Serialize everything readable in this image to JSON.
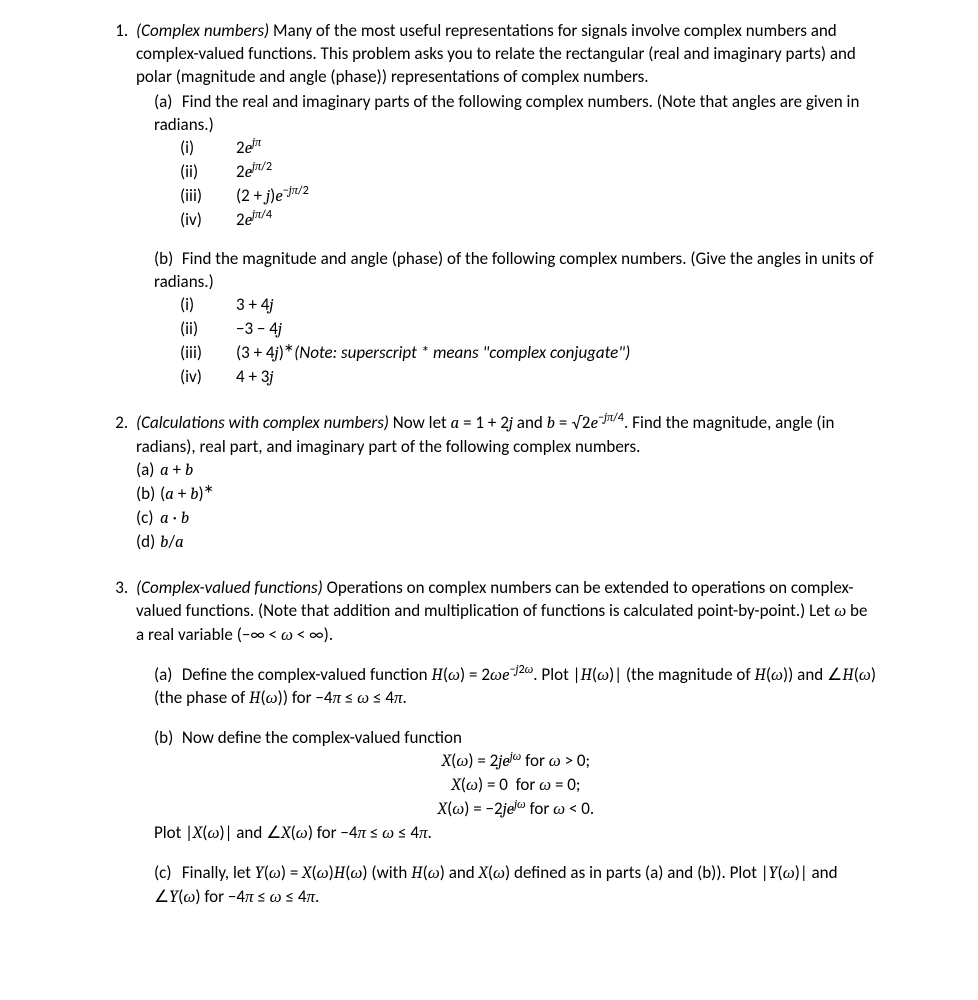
{
  "problems": {
    "p1": {
      "title": "(Complex numbers)",
      "intro": " Many of the most useful representations for signals involve complex numbers and complex-valued functions. This problem asks you to relate the rectangular (real and imaginary parts) and polar (magnitude and angle (phase)) representations of complex numbers.",
      "a": {
        "label": "(a)",
        "text": "Find the real and imaginary parts of the following complex numbers. (Note that angles are given in radians.)",
        "items": {
          "i": {
            "label": "(i)",
            "expr_html": "2<span class='math'>e</span><sup><span class='math'>jπ</span></sup>"
          },
          "ii": {
            "label": "(ii)",
            "expr_html": "2<span class='math'>e</span><sup><span class='math'>jπ</span>/2</sup>"
          },
          "iii": {
            "label": "(iii)",
            "expr_html": "(2 + <span class='math'>j</span>)<span class='math'>e</span><sup>−<span class='math'>jπ</span>/2</sup>"
          },
          "iv": {
            "label": "(iv)",
            "expr_html": "2<span class='math'>e</span><sup><span class='math'>jπ</span>/4</sup>"
          }
        }
      },
      "b": {
        "label": "(b)",
        "text": "Find the magnitude and angle (phase) of the following complex numbers. (Give the angles in units of radians.)",
        "items": {
          "i": {
            "label": "(i)",
            "expr_html": "3 + 4<span class='math'>j</span>"
          },
          "ii": {
            "label": "(ii)",
            "expr_html": "−3 − 4<span class='math'>j</span>"
          },
          "iii": {
            "label": "(iii)",
            "expr_html": "(3 + 4<span class='math'>j</span>)<sup>∗</sup>",
            "note": " (Note: superscript * means \"complex conjugate\")"
          },
          "iv": {
            "label": "(iv)",
            "expr_html": "4 + 3<span class='math'>j</span>"
          }
        }
      }
    },
    "p2": {
      "title": "(Calculations with complex numbers)",
      "intro_html": " Now let <span class='math'>a</span> = 1 + 2<span class='math'>j</span> and <span class='math'>b</span> = <span class='mathup'>√2</span><span class='math'>e</span><sup>−<span class='math'>jπ</span>/4</sup>. Find the magnitude, angle (in radians), real part, and imaginary part of the following complex numbers.",
      "items": {
        "a": {
          "label": "(a)",
          "expr_html": "<span class='math'>a</span> + <span class='math'>b</span>"
        },
        "b": {
          "label": "(b)",
          "expr_html": "(<span class='math'>a</span> + <span class='math'>b</span>)<sup>∗</sup>"
        },
        "c": {
          "label": "(c)",
          "expr_html": "<span class='math'>a</span> · <span class='math'>b</span>"
        },
        "d": {
          "label": "(d)",
          "expr_html": "<span class='math'>b</span>/<span class='math'>a</span>"
        }
      }
    },
    "p3": {
      "title": "(Complex-valued functions)",
      "intro_html": " Operations on complex numbers can be extended to operations on complex-valued functions. (Note that addition and multiplication of functions is calculated point-by-point.) Let <span class='math'>ω</span> be a real variable (−∞ &lt; <span class='math'>ω</span> &lt; ∞).",
      "a": {
        "label": "(a)",
        "text_html": "Define the complex-valued function <span class='math'>H</span>(<span class='math'>ω</span>) = 2<span class='math'>ωe</span><sup>−<span class='math'>j</span>2<span class='math'>ω</span></sup>. Plot |<span class='math'>H</span>(<span class='math'>ω</span>)| (the magnitude of <span class='math'>H</span>(<span class='math'>ω</span>)) and ∠<span class='math'>H</span>(<span class='math'>ω</span>) (the phase of <span class='math'>H</span>(<span class='math'>ω</span>)) for −4<span class='math'>π</span> ≤ <span class='math'>ω</span> ≤ 4<span class='math'>π</span>."
      },
      "b": {
        "label": "(b)",
        "lead": "Now define the complex-valued function",
        "lines": {
          "l1_html": "<span class='math'>X</span>(<span class='math'>ω</span>) = 2<span class='math'>je</span><sup><span class='math'>jω</span></sup> for <span class='math'>ω</span> &gt; 0;",
          "l2_html": "<span class='math'>X</span>(<span class='math'>ω</span>) = 0&nbsp; for <span class='math'>ω</span> = 0;",
          "l3_html": "<span class='math'>X</span>(<span class='math'>ω</span>) = −2<span class='math'>je</span><sup><span class='math'>jω</span></sup> for <span class='math'>ω</span> &lt; 0."
        },
        "tail_html": "Plot |<span class='math'>X</span>(<span class='math'>ω</span>)| and ∠<span class='math'>X</span>(<span class='math'>ω</span>) for −4<span class='math'>π</span> ≤ <span class='math'>ω</span> ≤ 4<span class='math'>π</span>."
      },
      "c": {
        "label": "(c)",
        "text_html": "Finally, let <span class='math'>Y</span>(<span class='math'>ω</span>) = <span class='math'>X</span>(<span class='math'>ω</span>)<span class='math'>H</span>(<span class='math'>ω</span>) (with <span class='math'>H</span>(<span class='math'>ω</span>) and <span class='math'>X</span>(<span class='math'>ω</span>) defined as in parts (a) and (b)). Plot |<span class='math'>Y</span>(<span class='math'>ω</span>)| and ∠<span class='math'>Y</span>(<span class='math'>ω</span>) for −4<span class='math'>π</span> ≤ <span class='math'>ω</span> ≤ 4<span class='math'>π</span>."
      }
    }
  }
}
